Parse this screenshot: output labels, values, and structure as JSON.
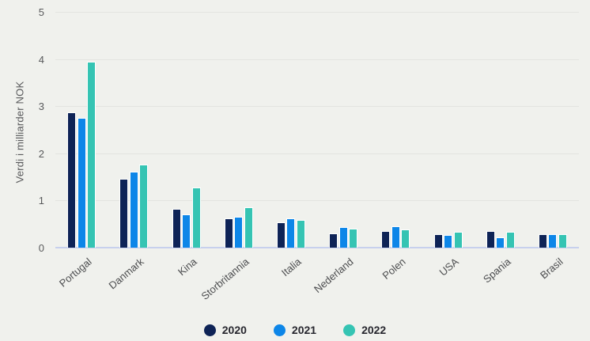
{
  "chart_data": {
    "type": "bar",
    "title": "",
    "ylabel": "Verdi i milliarder NOK",
    "xlabel": "",
    "ylim": [
      0,
      5
    ],
    "yticks": [
      0,
      1,
      2,
      3,
      4,
      5
    ],
    "grid": true,
    "legend_position": "bottom",
    "categories": [
      "Portugal",
      "Danmark",
      "Kina",
      "Storbritannia",
      "Italia",
      "Nederland",
      "Polen",
      "USA",
      "Spania",
      "Brasil"
    ],
    "series": [
      {
        "name": "2020",
        "color": "#0e2356",
        "values": [
          2.87,
          1.47,
          0.82,
          0.63,
          0.53,
          0.31,
          0.36,
          0.28,
          0.35,
          0.28
        ]
      },
      {
        "name": "2021",
        "color": "#0d86e8",
        "values": [
          2.76,
          1.62,
          0.7,
          0.66,
          0.63,
          0.44,
          0.46,
          0.27,
          0.22,
          0.29
        ]
      },
      {
        "name": "2022",
        "color": "#35c4b3",
        "values": [
          3.95,
          1.77,
          1.28,
          0.86,
          0.59,
          0.4,
          0.38,
          0.34,
          0.34,
          0.28
        ]
      }
    ]
  },
  "colors": {
    "background": "#f0f1ed",
    "gridline": "#e3e4e0",
    "zero_axis_line": "#c7d0ed",
    "tick_text": "#58595b",
    "category_text": "#4d4e50",
    "legend_text": "#26262e",
    "bar_outline": "#ffffff"
  }
}
